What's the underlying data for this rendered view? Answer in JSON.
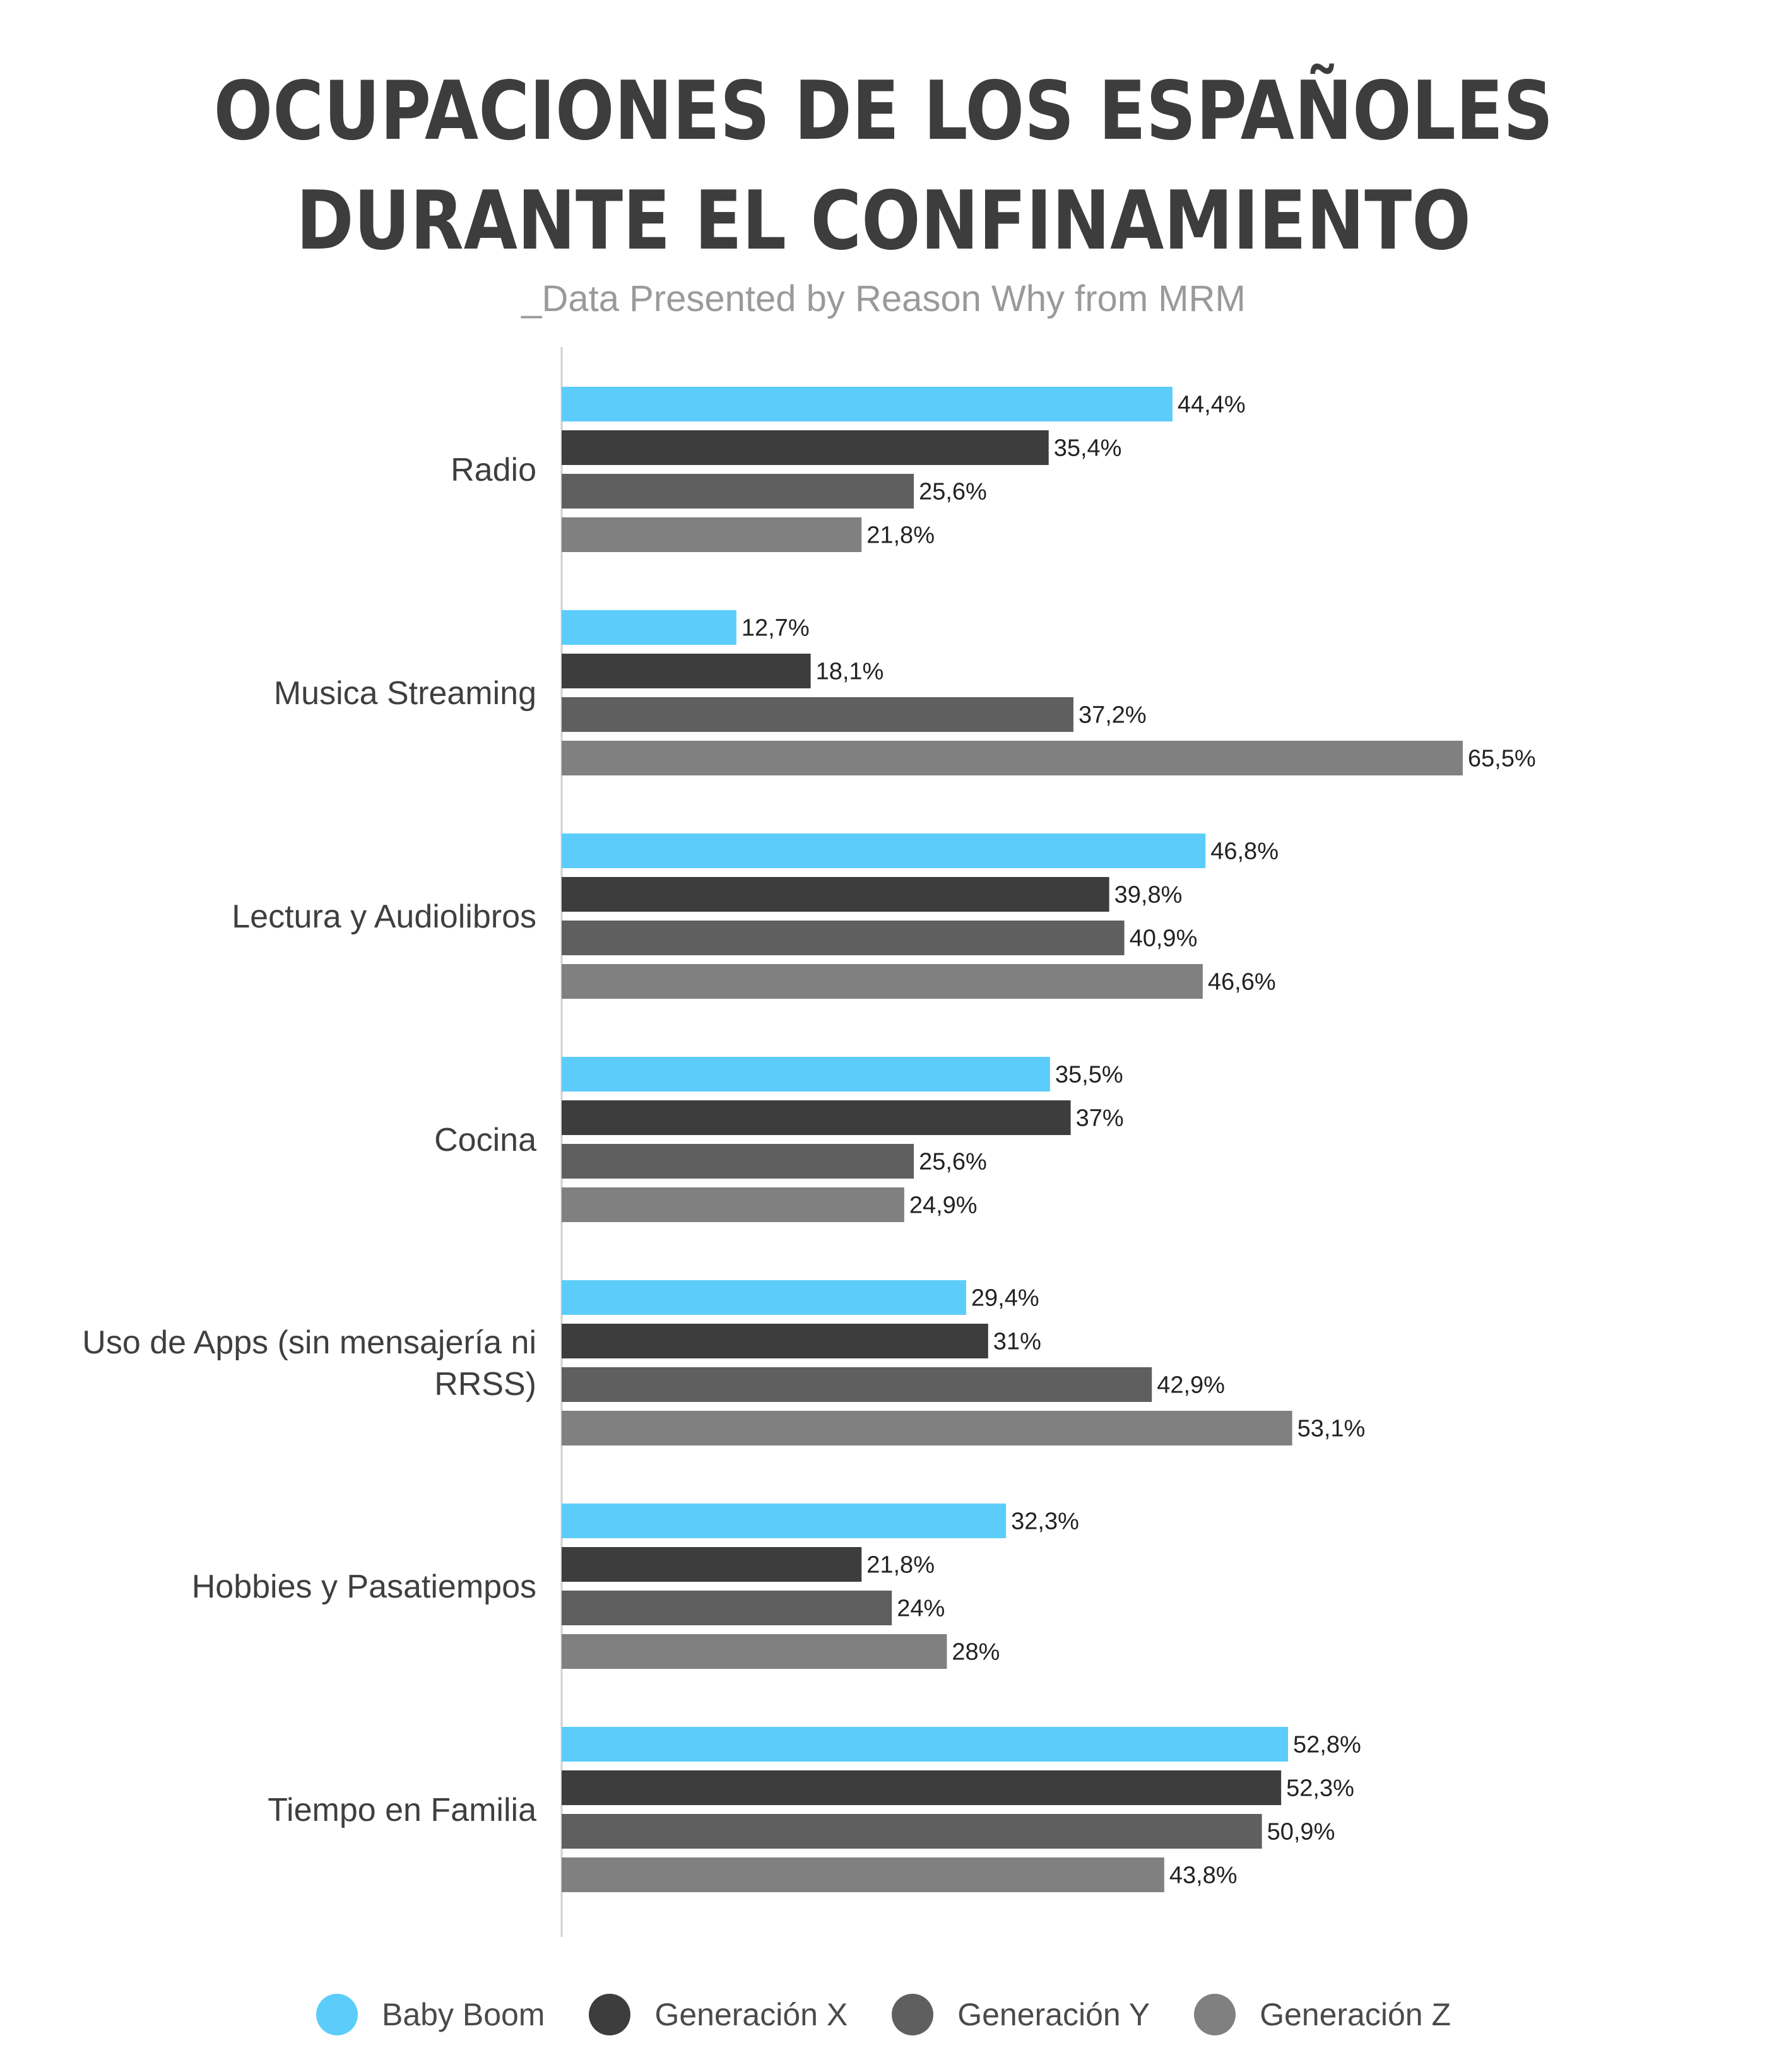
{
  "chart_data": {
    "type": "bar",
    "orientation": "horizontal",
    "title": "OCUPACIONES DE LOS ESPAÑOLES DURANTE EL CONFINAMIENTO",
    "title_lines": [
      "OCUPACIONES DE LOS ESPAÑOLES",
      "DURANTE EL CONFINAMIENTO"
    ],
    "subtitle": "_Data Presented by Reason Why from MRM",
    "categories": [
      "Radio",
      "Musica Streaming",
      "Lectura y Audiolibros",
      "Cocina",
      "Uso de Apps (sin mensajería ni RRSS)",
      "Hobbies y Pasatiempos",
      "Tiempo en Familia"
    ],
    "category_lines": [
      [
        "Radio"
      ],
      [
        "Musica Streaming"
      ],
      [
        "Lectura y Audiolibros"
      ],
      [
        "Cocina"
      ],
      [
        "Uso de Apps (sin mensajería ni",
        "RRSS)"
      ],
      [
        "Hobbies y Pasatiempos"
      ],
      [
        "Tiempo en Familia"
      ]
    ],
    "series": [
      {
        "name": "Baby Boom",
        "color": "#5ccdfb",
        "values": [
          44.4,
          12.7,
          46.8,
          35.5,
          29.4,
          32.3,
          52.8
        ],
        "labels": [
          "44,4%",
          "12,7%",
          "46,8%",
          "35,5%",
          "29,4%",
          "32,3%",
          "52,8%"
        ]
      },
      {
        "name": "Generación X",
        "color": "#3d3d3d",
        "values": [
          35.4,
          18.1,
          39.8,
          37,
          31,
          21.8,
          52.3
        ],
        "labels": [
          "35,4%",
          "18,1%",
          "39,8%",
          "37%",
          "31%",
          "21,8%",
          "52,3%"
        ]
      },
      {
        "name": "Generación Y",
        "color": "#5f5f5f",
        "values": [
          25.6,
          37.2,
          40.9,
          25.6,
          42.9,
          24,
          50.9
        ],
        "labels": [
          "25,6%",
          "37,2%",
          "40,9%",
          "25,6%",
          "42,9%",
          "24%",
          "50,9%"
        ]
      },
      {
        "name": "Generación Z",
        "color": "#808080",
        "values": [
          21.8,
          65.5,
          46.6,
          24.9,
          53.1,
          28,
          43.8
        ],
        "labels": [
          "21,8%",
          "65,5%",
          "46,6%",
          "24,9%",
          "53,1%",
          "28%",
          "43,8%"
        ]
      }
    ],
    "xlim": [
      0,
      70
    ],
    "grid": false,
    "legend_position": "bottom"
  }
}
